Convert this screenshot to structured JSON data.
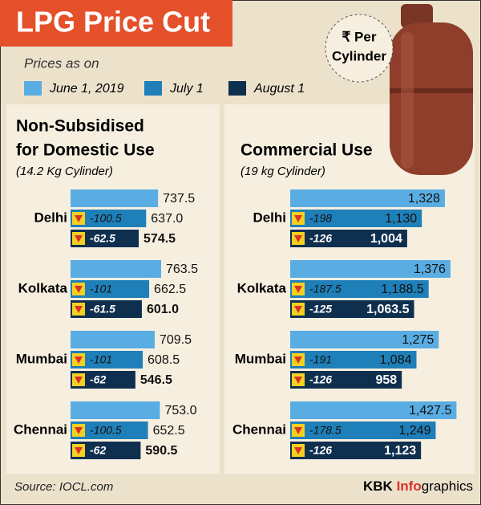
{
  "header": {
    "title": "LPG Price Cut",
    "legend_title": "Prices as on",
    "badge": [
      "₹ Per",
      "Cylinder"
    ]
  },
  "chart_data": [
    {
      "type": "bar",
      "title": [
        "Non-Subsidised",
        "for Domestic Use"
      ],
      "subtitle": "(14.2 Kg Cylinder)",
      "categories": [
        "Delhi",
        "Kolkata",
        "Mumbai",
        "Chennai"
      ],
      "series": [
        {
          "name": "June 1, 2019",
          "color": "#5aade2",
          "values": [
            737.5,
            763.5,
            709.5,
            753
          ],
          "value_labels": [
            "737.5",
            "763.5",
            "709.5",
            "753.0"
          ]
        },
        {
          "name": "July 1",
          "color": "#1f7fb8",
          "values": [
            637,
            662.5,
            608.5,
            652.5
          ],
          "value_labels": [
            "637.0",
            "662.5",
            "608.5",
            "652.5"
          ],
          "changes": [
            -100.5,
            -101,
            -101,
            -100.5
          ]
        },
        {
          "name": "August 1",
          "color": "#0f2f4f",
          "values": [
            574.5,
            601,
            546.5,
            590.5
          ],
          "value_labels": [
            "574.5",
            "601.0",
            "546.5",
            "590.5"
          ],
          "changes": [
            -62.5,
            -61.5,
            -62,
            -62
          ]
        }
      ]
    },
    {
      "type": "bar",
      "title": [
        "Commercial Use"
      ],
      "subtitle": "(19 kg Cylinder)",
      "categories": [
        "Delhi",
        "Kolkata",
        "Mumbai",
        "Chennai"
      ],
      "series": [
        {
          "color": "#5aade2",
          "values": [
            1328,
            1376,
            1275,
            1427.5
          ],
          "value_labels": [
            "1,328",
            "1,376",
            "1,275",
            "1,427.5"
          ]
        },
        {
          "color": "#1f7fb8",
          "values": [
            1130,
            1188.5,
            1084,
            1249
          ],
          "value_labels": [
            "1,130",
            "1,188.5",
            "1,084",
            "1,249"
          ],
          "changes": [
            -198,
            -187.5,
            -191,
            -178.5
          ]
        },
        {
          "color": "#0f2f4f",
          "values": [
            1004,
            1063.5,
            958,
            1123
          ],
          "value_labels": [
            "1,004",
            "1,063.5",
            "958",
            "1,123"
          ],
          "changes": [
            -126,
            -125,
            -126,
            -126
          ]
        }
      ]
    }
  ],
  "footer": {
    "source": "Source: IOCL.com",
    "brand": [
      "KBK",
      "Info",
      "graphics"
    ]
  }
}
